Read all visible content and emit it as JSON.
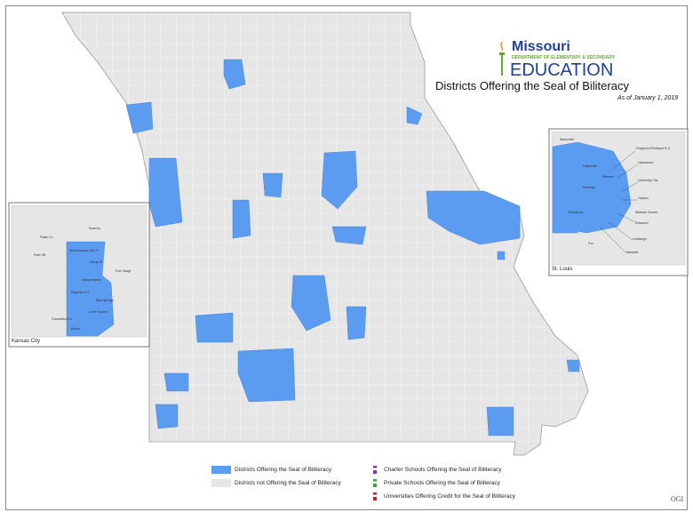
{
  "header": {
    "logo_state": "Missouri",
    "logo_dept": "DEPARTMENT OF ELEMENTARY & SECONDARY",
    "logo_education": "EDUCATION",
    "title": "Districts Offering the Seal of Biliteracy",
    "as_of": "As of January 1, 2019"
  },
  "insets": {
    "kansas_city": "Kansas City",
    "st_louis": "St. Louis"
  },
  "legend": [
    {
      "label": "Districts Offering the Seal of Biliteracy",
      "color": "#5b9bf0"
    },
    {
      "label": "Districts not Offering the Seal of Biliteracy",
      "color": "#e6e6e6"
    },
    {
      "label": "Charter Schools Offering the Seal of Biliteracy",
      "color": "#a020c0"
    },
    {
      "label": "Private Schools Offering the Seal of Biliteracy",
      "color": "#3aa83a"
    },
    {
      "label": "Universities Offering Credit for the Seal of Biliteracy",
      "color": "#c0202a"
    }
  ],
  "credit": "OGI",
  "kc_labels": [
    "North Kansas City 74",
    "Liberty 53",
    "Independence",
    "Raytown C-2",
    "Blue Springs",
    "Lee's Summit",
    "Grandview C-4",
    "Belton",
    "Park Hill",
    "Fort Osage",
    "Kearney",
    "Platte Co."
  ],
  "stl_labels": [
    "Ferguson-Florissant R-II",
    "Hazelwood",
    "Pattonville",
    "Parkway",
    "Rockwood",
    "Ritenour",
    "University City",
    "Clayton",
    "Kirkwood",
    "Webster Groves",
    "Lindbergh",
    "Mehlville",
    "Fox",
    "Wentzville"
  ]
}
